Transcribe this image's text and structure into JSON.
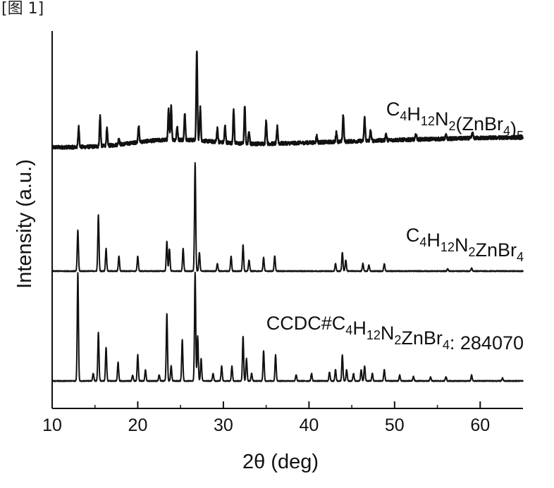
{
  "figure_label": "[图 1]",
  "chart_data": {
    "type": "line",
    "title": "",
    "xlabel": "2θ (deg)",
    "ylabel": "Intensity (a.u.)",
    "xlim": [
      10,
      65
    ],
    "xticks": [
      10,
      20,
      30,
      40,
      50,
      60
    ],
    "tick_labels": [
      "10",
      "20",
      "30",
      "40",
      "50",
      "60"
    ],
    "line_color": "#111111",
    "series": [
      {
        "name": "C4H12N2(ZnBr4)5",
        "label_parts": [
          {
            "t": "C",
            "s": "n"
          },
          {
            "t": "4",
            "s": "sub"
          },
          {
            "t": "H",
            "s": "n"
          },
          {
            "t": "12",
            "s": "sub"
          },
          {
            "t": "N",
            "s": "n"
          },
          {
            "t": "2",
            "s": "sub"
          },
          {
            "t": "(ZnBr",
            "s": "n"
          },
          {
            "t": "4",
            "s": "sub"
          },
          {
            "t": ")",
            "s": "n"
          },
          {
            "t": "5",
            "s": "sub"
          }
        ],
        "baseline": [
          [
            10,
            0.5
          ],
          [
            20,
            0.5
          ],
          [
            24,
            0.4
          ],
          [
            30,
            0.8
          ],
          [
            40,
            1.2
          ],
          [
            50,
            1.6
          ],
          [
            60,
            1.9
          ],
          [
            65,
            2.0
          ]
        ],
        "hump": {
          "center": 24,
          "width": 6,
          "height": 1.2
        },
        "peaks": [
          [
            13.1,
            3.0
          ],
          [
            15.6,
            4.5
          ],
          [
            16.4,
            2.5
          ],
          [
            17.8,
            1.0
          ],
          [
            20.1,
            2.5
          ],
          [
            23.6,
            4.5
          ],
          [
            23.9,
            5.0
          ],
          [
            24.6,
            2.0
          ],
          [
            25.5,
            4.0
          ],
          [
            26.9,
            13.5
          ],
          [
            27.3,
            5.0
          ],
          [
            29.3,
            2.0
          ],
          [
            30.2,
            2.5
          ],
          [
            31.2,
            5.0
          ],
          [
            32.5,
            5.5
          ],
          [
            33.0,
            2.0
          ],
          [
            35.0,
            3.5
          ],
          [
            36.3,
            2.5
          ],
          [
            40.9,
            1.0
          ],
          [
            43.2,
            1.5
          ],
          [
            44.0,
            4.0
          ],
          [
            46.5,
            3.5
          ],
          [
            47.2,
            1.5
          ],
          [
            49.0,
            1.0
          ],
          [
            52.5,
            0.8
          ],
          [
            56.0,
            0.5
          ],
          [
            59.1,
            0.8
          ]
        ]
      },
      {
        "name": "C4H12N2ZnBr4",
        "label_parts": [
          {
            "t": "C",
            "s": "n"
          },
          {
            "t": "4",
            "s": "sub"
          },
          {
            "t": "H",
            "s": "n"
          },
          {
            "t": "12",
            "s": "sub"
          },
          {
            "t": "N",
            "s": "n"
          },
          {
            "t": "2",
            "s": "sub"
          },
          {
            "t": "ZnBr",
            "s": "n"
          },
          {
            "t": "4",
            "s": "sub"
          }
        ],
        "baseline": [
          [
            10,
            0
          ],
          [
            65,
            0
          ]
        ],
        "hump": {
          "center": 24,
          "width": 6,
          "height": 0
        },
        "peaks": [
          [
            13.0,
            5.5
          ],
          [
            15.4,
            7.5
          ],
          [
            16.3,
            3.0
          ],
          [
            17.8,
            2.0
          ],
          [
            20.0,
            2.0
          ],
          [
            23.4,
            4.0
          ],
          [
            23.7,
            3.0
          ],
          [
            25.3,
            3.0
          ],
          [
            26.7,
            14.5
          ],
          [
            27.2,
            2.5
          ],
          [
            29.3,
            1.0
          ],
          [
            30.9,
            2.0
          ],
          [
            32.3,
            3.5
          ],
          [
            33.0,
            1.5
          ],
          [
            34.7,
            1.8
          ],
          [
            36.0,
            2.0
          ],
          [
            43.1,
            1.0
          ],
          [
            43.9,
            2.5
          ],
          [
            44.3,
            1.5
          ],
          [
            46.3,
            1.0
          ],
          [
            47.0,
            0.8
          ],
          [
            48.8,
            1.0
          ],
          [
            56.2,
            0.3
          ],
          [
            59.0,
            0.4
          ]
        ]
      },
      {
        "name": "CCDC#C4H12N2ZnBr4: 284070",
        "label_parts": [
          {
            "t": "CCDC#C",
            "s": "n"
          },
          {
            "t": "4",
            "s": "sub"
          },
          {
            "t": "H",
            "s": "n"
          },
          {
            "t": "12",
            "s": "sub"
          },
          {
            "t": "N",
            "s": "n"
          },
          {
            "t": "2",
            "s": "sub"
          },
          {
            "t": "ZnBr",
            "s": "n"
          },
          {
            "t": "4",
            "s": "sub"
          },
          {
            "t": ": 284070",
            "s": "n"
          }
        ],
        "baseline": [
          [
            10,
            0
          ],
          [
            65,
            0
          ]
        ],
        "hump": {
          "center": 24,
          "width": 6,
          "height": 0
        },
        "peaks": [
          [
            13.0,
            14.5
          ],
          [
            14.8,
            1.0
          ],
          [
            15.4,
            6.5
          ],
          [
            16.3,
            4.5
          ],
          [
            17.7,
            2.5
          ],
          [
            19.4,
            0.8
          ],
          [
            20.0,
            3.5
          ],
          [
            20.9,
            1.5
          ],
          [
            22.5,
            0.8
          ],
          [
            23.4,
            9.0
          ],
          [
            23.9,
            2.0
          ],
          [
            25.2,
            5.5
          ],
          [
            26.7,
            14.5
          ],
          [
            27.0,
            6.0
          ],
          [
            27.4,
            3.0
          ],
          [
            28.8,
            1.0
          ],
          [
            29.8,
            2.0
          ],
          [
            31.0,
            2.0
          ],
          [
            32.3,
            6.0
          ],
          [
            32.7,
            3.0
          ],
          [
            33.3,
            1.0
          ],
          [
            34.7,
            4.0
          ],
          [
            36.1,
            3.5
          ],
          [
            38.5,
            0.8
          ],
          [
            40.3,
            1.0
          ],
          [
            42.4,
            1.2
          ],
          [
            43.1,
            1.5
          ],
          [
            43.9,
            3.5
          ],
          [
            44.4,
            1.5
          ],
          [
            45.2,
            1.0
          ],
          [
            46.1,
            1.5
          ],
          [
            46.5,
            2.0
          ],
          [
            47.4,
            1.0
          ],
          [
            48.8,
            1.5
          ],
          [
            50.6,
            0.8
          ],
          [
            52.2,
            0.6
          ],
          [
            54.2,
            0.5
          ],
          [
            56.0,
            0.6
          ],
          [
            59.0,
            0.8
          ],
          [
            62.6,
            0.4
          ]
        ]
      }
    ]
  }
}
